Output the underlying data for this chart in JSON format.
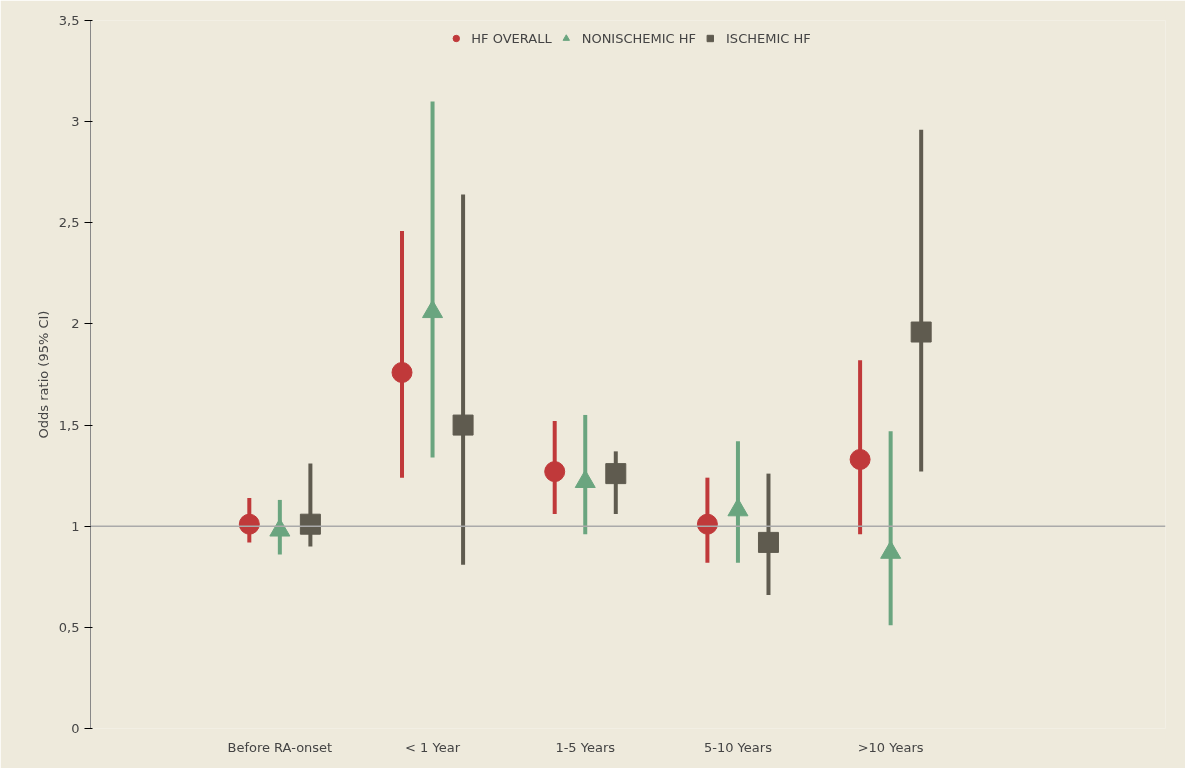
{
  "chart_data": {
    "type": "scatter",
    "ylabel": "Odds ratio (95% CI)",
    "categories": [
      "Before RA-onset",
      "< 1 Year",
      "1-5 Years",
      "5-10 Years",
      ">10 Years"
    ],
    "series": [
      {
        "name": "HF OVERALL",
        "color": "#c0393a",
        "marker": "circle",
        "values": [
          1.01,
          1.76,
          1.27,
          1.01,
          1.33
        ],
        "errors": [
          [
            0.92,
            1.14
          ],
          [
            1.24,
            2.46
          ],
          [
            1.06,
            1.52
          ],
          [
            0.82,
            1.24
          ],
          [
            0.96,
            1.82
          ]
        ]
      },
      {
        "name": "NONISCHEMIC HF",
        "color": "#6aa57f",
        "marker": "triangle",
        "values": [
          0.98,
          2.06,
          1.22,
          1.08,
          0.87
        ],
        "errors": [
          [
            0.86,
            1.13
          ],
          [
            1.34,
            3.1
          ],
          [
            0.96,
            1.55
          ],
          [
            0.82,
            1.42
          ],
          [
            0.51,
            1.47
          ]
        ]
      },
      {
        "name": "ISCHEMIC HF",
        "color": "#5f5b4f",
        "marker": "square",
        "values": [
          1.01,
          1.5,
          1.26,
          0.92,
          1.96
        ],
        "errors": [
          [
            0.9,
            1.31
          ],
          [
            0.81,
            2.64
          ],
          [
            1.06,
            1.37
          ],
          [
            0.66,
            1.26
          ],
          [
            1.27,
            2.96
          ]
        ]
      }
    ],
    "ylim": [
      0,
      3.5
    ],
    "yticks": [
      0,
      {
        "value": 0.5,
        "label": "0,5"
      },
      1,
      {
        "value": 1.5,
        "label": "1,5"
      },
      2,
      {
        "value": 2.5,
        "label": "2,5"
      },
      3,
      {
        "value": 3.5,
        "label": "3,5"
      }
    ],
    "ref_lines": [
      {
        "axis": "y",
        "value": 1,
        "color": "#aaaaaa",
        "line_style": "solid"
      }
    ],
    "grid": false,
    "legend": "top"
  }
}
